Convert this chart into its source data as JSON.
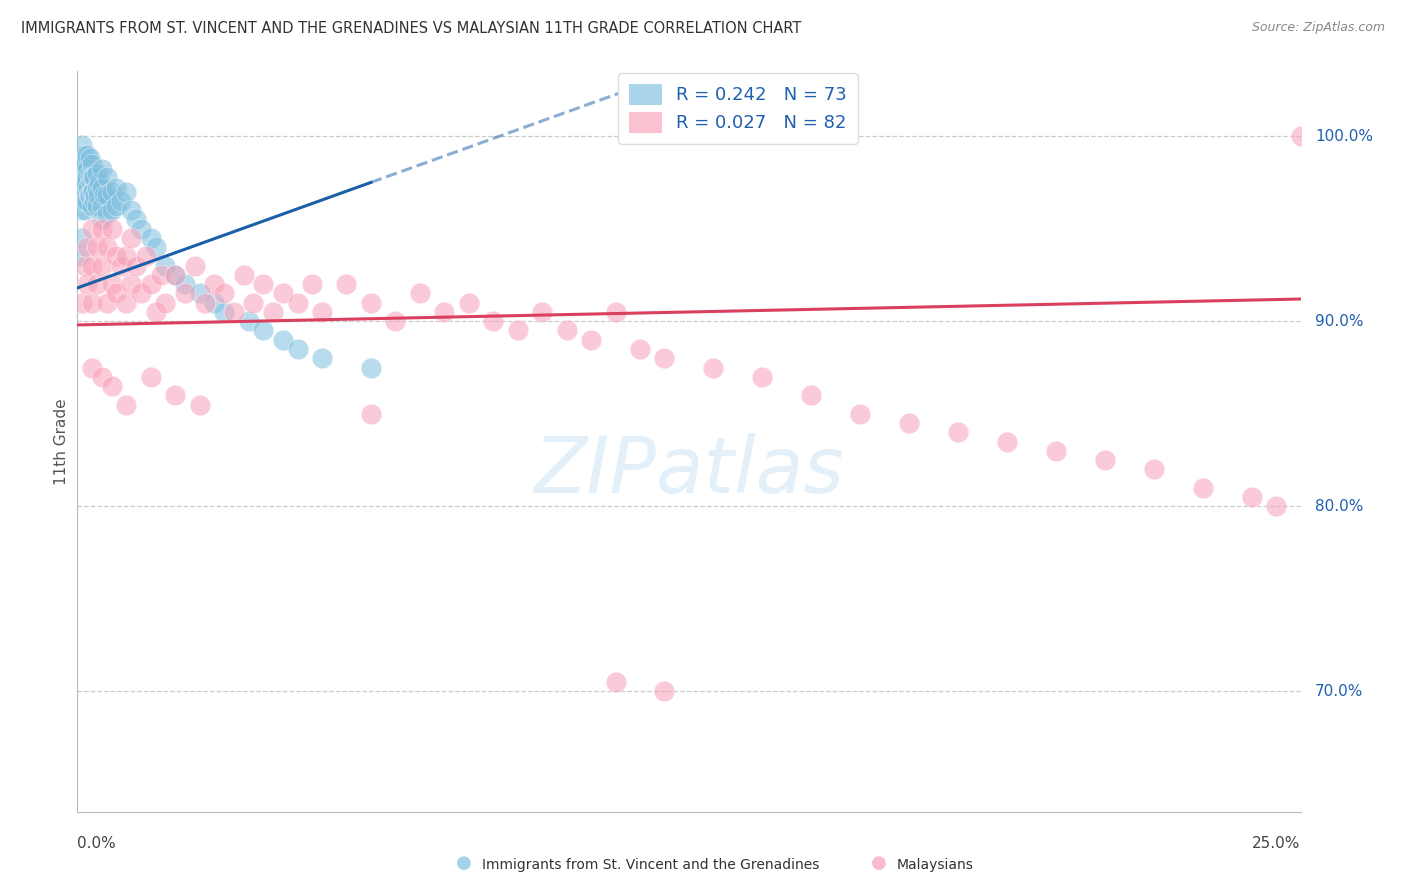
{
  "title": "IMMIGRANTS FROM ST. VINCENT AND THE GRENADINES VS MALAYSIAN 11TH GRADE CORRELATION CHART",
  "source": "Source: ZipAtlas.com",
  "ylabel": "11th Grade",
  "y_tick_labels": [
    "70.0%",
    "80.0%",
    "90.0%",
    "100.0%"
  ],
  "y_tick_values": [
    0.7,
    0.8,
    0.9,
    1.0
  ],
  "x_min": 0.0,
  "x_max": 0.25,
  "y_min": 0.635,
  "y_max": 1.035,
  "blue_color": "#7fbfdf",
  "pink_color": "#f8a0b8",
  "blue_line_color": "#1a5fa8",
  "pink_line_color": "#d94060",
  "legend_text_color": "#2060b0",
  "title_color": "#333333",
  "grid_color": "#cccccc",
  "blue_x": [
    0.0003,
    0.0005,
    0.0006,
    0.0007,
    0.0008,
    0.0008,
    0.001,
    0.001,
    0.001,
    0.0012,
    0.0013,
    0.0014,
    0.0015,
    0.0015,
    0.0016,
    0.0017,
    0.0018,
    0.0018,
    0.002,
    0.002,
    0.002,
    0.002,
    0.0022,
    0.0023,
    0.0025,
    0.0025,
    0.0026,
    0.0028,
    0.003,
    0.003,
    0.003,
    0.003,
    0.0032,
    0.0033,
    0.0034,
    0.0035,
    0.0036,
    0.004,
    0.004,
    0.004,
    0.0042,
    0.0045,
    0.005,
    0.005,
    0.005,
    0.005,
    0.0055,
    0.006,
    0.006,
    0.006,
    0.007,
    0.007,
    0.008,
    0.008,
    0.009,
    0.01,
    0.011,
    0.012,
    0.013,
    0.015,
    0.016,
    0.018,
    0.02,
    0.022,
    0.025,
    0.028,
    0.03,
    0.035,
    0.038,
    0.042,
    0.045,
    0.05,
    0.06
  ],
  "blue_y": [
    0.935,
    0.97,
    0.985,
    0.975,
    0.96,
    0.945,
    0.995,
    0.985,
    0.975,
    0.965,
    0.99,
    0.98,
    0.97,
    0.96,
    0.975,
    0.965,
    0.985,
    0.975,
    0.99,
    0.982,
    0.978,
    0.965,
    0.972,
    0.968,
    0.988,
    0.978,
    0.968,
    0.975,
    0.985,
    0.978,
    0.97,
    0.962,
    0.978,
    0.97,
    0.965,
    0.978,
    0.968,
    0.98,
    0.972,
    0.962,
    0.968,
    0.975,
    0.982,
    0.972,
    0.962,
    0.955,
    0.968,
    0.978,
    0.968,
    0.958,
    0.97,
    0.96,
    0.972,
    0.962,
    0.965,
    0.97,
    0.96,
    0.955,
    0.95,
    0.945,
    0.94,
    0.93,
    0.925,
    0.92,
    0.915,
    0.91,
    0.905,
    0.9,
    0.895,
    0.89,
    0.885,
    0.88,
    0.875
  ],
  "pink_x": [
    0.001,
    0.0015,
    0.002,
    0.002,
    0.003,
    0.003,
    0.003,
    0.004,
    0.004,
    0.005,
    0.005,
    0.006,
    0.006,
    0.007,
    0.007,
    0.008,
    0.008,
    0.009,
    0.01,
    0.01,
    0.011,
    0.011,
    0.012,
    0.013,
    0.014,
    0.015,
    0.016,
    0.017,
    0.018,
    0.02,
    0.022,
    0.024,
    0.026,
    0.028,
    0.03,
    0.032,
    0.034,
    0.036,
    0.038,
    0.04,
    0.042,
    0.045,
    0.048,
    0.05,
    0.055,
    0.06,
    0.065,
    0.07,
    0.075,
    0.08,
    0.085,
    0.09,
    0.095,
    0.1,
    0.105,
    0.11,
    0.115,
    0.12,
    0.13,
    0.14,
    0.15,
    0.16,
    0.17,
    0.18,
    0.19,
    0.2,
    0.21,
    0.22,
    0.23,
    0.24,
    0.245,
    0.25,
    0.003,
    0.005,
    0.007,
    0.01,
    0.015,
    0.02,
    0.025,
    0.06,
    0.11,
    0.12
  ],
  "pink_y": [
    0.91,
    0.93,
    0.92,
    0.94,
    0.93,
    0.95,
    0.91,
    0.94,
    0.92,
    0.93,
    0.95,
    0.91,
    0.94,
    0.92,
    0.95,
    0.915,
    0.935,
    0.93,
    0.91,
    0.935,
    0.92,
    0.945,
    0.93,
    0.915,
    0.935,
    0.92,
    0.905,
    0.925,
    0.91,
    0.925,
    0.915,
    0.93,
    0.91,
    0.92,
    0.915,
    0.905,
    0.925,
    0.91,
    0.92,
    0.905,
    0.915,
    0.91,
    0.92,
    0.905,
    0.92,
    0.91,
    0.9,
    0.915,
    0.905,
    0.91,
    0.9,
    0.895,
    0.905,
    0.895,
    0.89,
    0.905,
    0.885,
    0.88,
    0.875,
    0.87,
    0.86,
    0.85,
    0.845,
    0.84,
    0.835,
    0.83,
    0.825,
    0.82,
    0.81,
    0.805,
    0.8,
    1.0,
    0.875,
    0.87,
    0.865,
    0.855,
    0.87,
    0.86,
    0.855,
    0.85,
    0.705,
    0.7
  ],
  "trend_blue_x0": 0.0,
  "trend_blue_y0": 0.918,
  "trend_blue_x1": 0.06,
  "trend_blue_y1": 0.975,
  "trend_pink_x0": 0.0,
  "trend_pink_y0": 0.898,
  "trend_pink_x1": 0.25,
  "trend_pink_y1": 0.912
}
